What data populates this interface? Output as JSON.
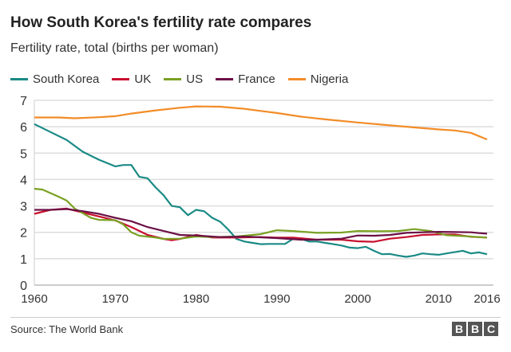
{
  "chart_data": {
    "type": "line",
    "title": "How South Korea's fertility rate compares",
    "subtitle": "Fertility rate, total (births per woman)",
    "xlim": [
      1960,
      2016
    ],
    "ylim": [
      0,
      7
    ],
    "xticks": [
      "1960",
      "1970",
      "1980",
      "1990",
      "2000",
      "2010",
      "2016"
    ],
    "yticks": [
      "0",
      "1",
      "2",
      "3",
      "4",
      "5",
      "6",
      "7"
    ],
    "grid": true,
    "legend_position": "top",
    "series": [
      {
        "name": "South Korea",
        "color": "#1a8a85",
        "points": [
          [
            1960,
            6.1
          ],
          [
            1962,
            5.8
          ],
          [
            1964,
            5.5
          ],
          [
            1966,
            5.05
          ],
          [
            1968,
            4.75
          ],
          [
            1970,
            4.5
          ],
          [
            1971,
            4.55
          ],
          [
            1972,
            4.55
          ],
          [
            1973,
            4.1
          ],
          [
            1974,
            4.05
          ],
          [
            1975,
            3.7
          ],
          [
            1976,
            3.4
          ],
          [
            1977,
            3.0
          ],
          [
            1978,
            2.95
          ],
          [
            1979,
            2.65
          ],
          [
            1980,
            2.85
          ],
          [
            1981,
            2.8
          ],
          [
            1982,
            2.55
          ],
          [
            1983,
            2.4
          ],
          [
            1984,
            2.1
          ],
          [
            1985,
            1.75
          ],
          [
            1986,
            1.65
          ],
          [
            1987,
            1.6
          ],
          [
            1988,
            1.55
          ],
          [
            1989,
            1.56
          ],
          [
            1990,
            1.56
          ],
          [
            1991,
            1.56
          ],
          [
            1992,
            1.75
          ],
          [
            1993,
            1.75
          ],
          [
            1994,
            1.65
          ],
          [
            1995,
            1.65
          ],
          [
            1996,
            1.6
          ],
          [
            1997,
            1.55
          ],
          [
            1998,
            1.5
          ],
          [
            1999,
            1.42
          ],
          [
            2000,
            1.4
          ],
          [
            2001,
            1.45
          ],
          [
            2002,
            1.3
          ],
          [
            2003,
            1.17
          ],
          [
            2004,
            1.18
          ],
          [
            2005,
            1.12
          ],
          [
            2006,
            1.07
          ],
          [
            2007,
            1.12
          ],
          [
            2008,
            1.2
          ],
          [
            2009,
            1.17
          ],
          [
            2010,
            1.15
          ],
          [
            2011,
            1.2
          ],
          [
            2012,
            1.25
          ],
          [
            2013,
            1.3
          ],
          [
            2014,
            1.2
          ],
          [
            2015,
            1.24
          ],
          [
            2016,
            1.17
          ]
        ]
      },
      {
        "name": "UK",
        "color": "#c8102e",
        "points": [
          [
            1960,
            2.7
          ],
          [
            1962,
            2.85
          ],
          [
            1964,
            2.9
          ],
          [
            1966,
            2.75
          ],
          [
            1968,
            2.6
          ],
          [
            1970,
            2.45
          ],
          [
            1972,
            2.2
          ],
          [
            1974,
            1.9
          ],
          [
            1976,
            1.75
          ],
          [
            1977,
            1.7
          ],
          [
            1978,
            1.75
          ],
          [
            1980,
            1.9
          ],
          [
            1982,
            1.8
          ],
          [
            1985,
            1.8
          ],
          [
            1988,
            1.82
          ],
          [
            1990,
            1.8
          ],
          [
            1992,
            1.8
          ],
          [
            1995,
            1.72
          ],
          [
            1998,
            1.72
          ],
          [
            2000,
            1.66
          ],
          [
            2002,
            1.64
          ],
          [
            2004,
            1.76
          ],
          [
            2006,
            1.82
          ],
          [
            2008,
            1.9
          ],
          [
            2010,
            1.92
          ],
          [
            2012,
            1.92
          ],
          [
            2014,
            1.83
          ],
          [
            2016,
            1.8
          ]
        ]
      },
      {
        "name": "US",
        "color": "#7aa123",
        "points": [
          [
            1960,
            3.65
          ],
          [
            1961,
            3.62
          ],
          [
            1963,
            3.35
          ],
          [
            1964,
            3.2
          ],
          [
            1965,
            2.9
          ],
          [
            1967,
            2.55
          ],
          [
            1968,
            2.47
          ],
          [
            1970,
            2.46
          ],
          [
            1971,
            2.3
          ],
          [
            1972,
            2.0
          ],
          [
            1973,
            1.87
          ],
          [
            1975,
            1.8
          ],
          [
            1976,
            1.75
          ],
          [
            1978,
            1.76
          ],
          [
            1980,
            1.84
          ],
          [
            1982,
            1.82
          ],
          [
            1985,
            1.84
          ],
          [
            1988,
            1.93
          ],
          [
            1990,
            2.08
          ],
          [
            1992,
            2.05
          ],
          [
            1995,
            1.98
          ],
          [
            1998,
            1.99
          ],
          [
            2000,
            2.05
          ],
          [
            2003,
            2.04
          ],
          [
            2005,
            2.05
          ],
          [
            2007,
            2.12
          ],
          [
            2009,
            2.05
          ],
          [
            2011,
            1.89
          ],
          [
            2013,
            1.86
          ],
          [
            2016,
            1.8
          ]
        ]
      },
      {
        "name": "France",
        "color": "#6b1046",
        "points": [
          [
            1960,
            2.85
          ],
          [
            1962,
            2.85
          ],
          [
            1964,
            2.88
          ],
          [
            1966,
            2.8
          ],
          [
            1968,
            2.7
          ],
          [
            1970,
            2.55
          ],
          [
            1972,
            2.42
          ],
          [
            1974,
            2.2
          ],
          [
            1976,
            2.05
          ],
          [
            1978,
            1.9
          ],
          [
            1980,
            1.88
          ],
          [
            1983,
            1.82
          ],
          [
            1986,
            1.84
          ],
          [
            1990,
            1.78
          ],
          [
            1993,
            1.72
          ],
          [
            1995,
            1.72
          ],
          [
            1998,
            1.76
          ],
          [
            2000,
            1.88
          ],
          [
            2002,
            1.87
          ],
          [
            2004,
            1.9
          ],
          [
            2006,
            1.98
          ],
          [
            2008,
            2.0
          ],
          [
            2010,
            2.02
          ],
          [
            2012,
            2.01
          ],
          [
            2014,
            2.0
          ],
          [
            2015,
            1.97
          ],
          [
            2016,
            1.95
          ]
        ]
      },
      {
        "name": "Nigeria",
        "color": "#f28c28",
        "points": [
          [
            1960,
            6.35
          ],
          [
            1963,
            6.35
          ],
          [
            1965,
            6.32
          ],
          [
            1968,
            6.36
          ],
          [
            1970,
            6.4
          ],
          [
            1972,
            6.5
          ],
          [
            1975,
            6.62
          ],
          [
            1978,
            6.72
          ],
          [
            1980,
            6.77
          ],
          [
            1983,
            6.76
          ],
          [
            1986,
            6.68
          ],
          [
            1988,
            6.6
          ],
          [
            1990,
            6.52
          ],
          [
            1993,
            6.38
          ],
          [
            1996,
            6.28
          ],
          [
            2000,
            6.16
          ],
          [
            2003,
            6.08
          ],
          [
            2006,
            6.0
          ],
          [
            2010,
            5.9
          ],
          [
            2012,
            5.86
          ],
          [
            2014,
            5.77
          ],
          [
            2016,
            5.52
          ]
        ]
      }
    ]
  },
  "footer": {
    "source": "Source: The World Bank",
    "logo": "BBC"
  }
}
